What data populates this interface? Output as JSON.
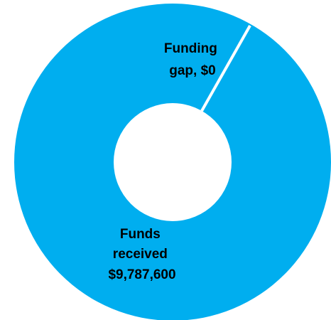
{
  "chart_data": {
    "type": "pie",
    "donut": true,
    "colors": {
      "slice": "#00aeef",
      "separator": "#ffffff",
      "hole": "#ffffff"
    },
    "slices": [
      {
        "name": "Funds received",
        "value": 9787600,
        "label_lines": [
          "Funds",
          "received",
          "$9,787,600"
        ]
      },
      {
        "name": "Funding gap",
        "value": 0,
        "label_lines": [
          "Funding",
          "gap, $0"
        ]
      }
    ],
    "title": "",
    "legend": "none"
  }
}
